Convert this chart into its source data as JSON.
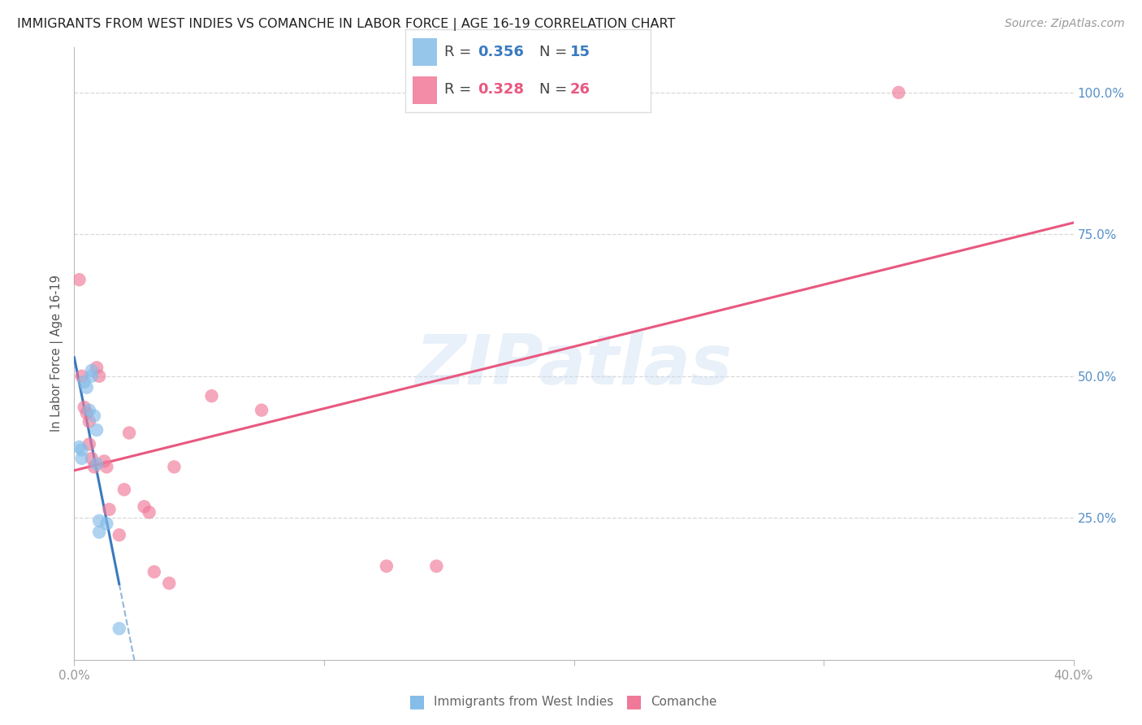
{
  "title": "IMMIGRANTS FROM WEST INDIES VS COMANCHE IN LABOR FORCE | AGE 16-19 CORRELATION CHART",
  "source": "Source: ZipAtlas.com",
  "ylabel": "In Labor Force | Age 16-19",
  "watermark": "ZIPatlas",
  "xlim": [
    0.0,
    0.4
  ],
  "ylim": [
    0.0,
    1.08
  ],
  "ytick_vals": [
    0.0,
    0.25,
    0.5,
    0.75,
    1.0
  ],
  "ytick_labels_right": [
    "",
    "25.0%",
    "50.0%",
    "75.0%",
    "100.0%"
  ],
  "xtick_vals": [
    0.0,
    0.1,
    0.2,
    0.3,
    0.4
  ],
  "xtick_labels": [
    "0.0%",
    "",
    "",
    "",
    "40.0%"
  ],
  "blue_color": "#85bce8",
  "blue_line_color": "#3a7abf",
  "pink_color": "#f07898",
  "pink_line_color": "#e85880",
  "blue_R": "0.356",
  "blue_N": "15",
  "pink_R": "0.328",
  "pink_N": "26",
  "label_blue": "Immigrants from West Indies",
  "label_pink": "Comanche",
  "blue_x": [
    0.002,
    0.003,
    0.003,
    0.004,
    0.005,
    0.006,
    0.007,
    0.007,
    0.008,
    0.009,
    0.009,
    0.01,
    0.01,
    0.013,
    0.018
  ],
  "blue_y": [
    0.375,
    0.37,
    0.355,
    0.49,
    0.48,
    0.44,
    0.5,
    0.51,
    0.43,
    0.405,
    0.345,
    0.245,
    0.225,
    0.24,
    0.055
  ],
  "pink_x": [
    0.002,
    0.003,
    0.004,
    0.005,
    0.006,
    0.006,
    0.007,
    0.008,
    0.009,
    0.01,
    0.012,
    0.013,
    0.014,
    0.018,
    0.02,
    0.022,
    0.028,
    0.03,
    0.032,
    0.038,
    0.04,
    0.055,
    0.075,
    0.125,
    0.145,
    0.33
  ],
  "pink_y": [
    0.67,
    0.5,
    0.445,
    0.435,
    0.42,
    0.38,
    0.355,
    0.34,
    0.515,
    0.5,
    0.35,
    0.34,
    0.265,
    0.22,
    0.3,
    0.4,
    0.27,
    0.26,
    0.155,
    0.135,
    0.34,
    0.465,
    0.44,
    0.165,
    0.165,
    1.0
  ],
  "grid_color": "#d8d8d8",
  "bg_color": "#ffffff",
  "tick_color_y_right": "#5590c8",
  "tick_color_x": "#999999",
  "title_fontsize": 11.5,
  "ylabel_fontsize": 10.5,
  "tick_fontsize": 11,
  "source_fontsize": 10,
  "watermark_fontsize": 62,
  "watermark_color": "#c5d8f0",
  "watermark_alpha": 0.38
}
